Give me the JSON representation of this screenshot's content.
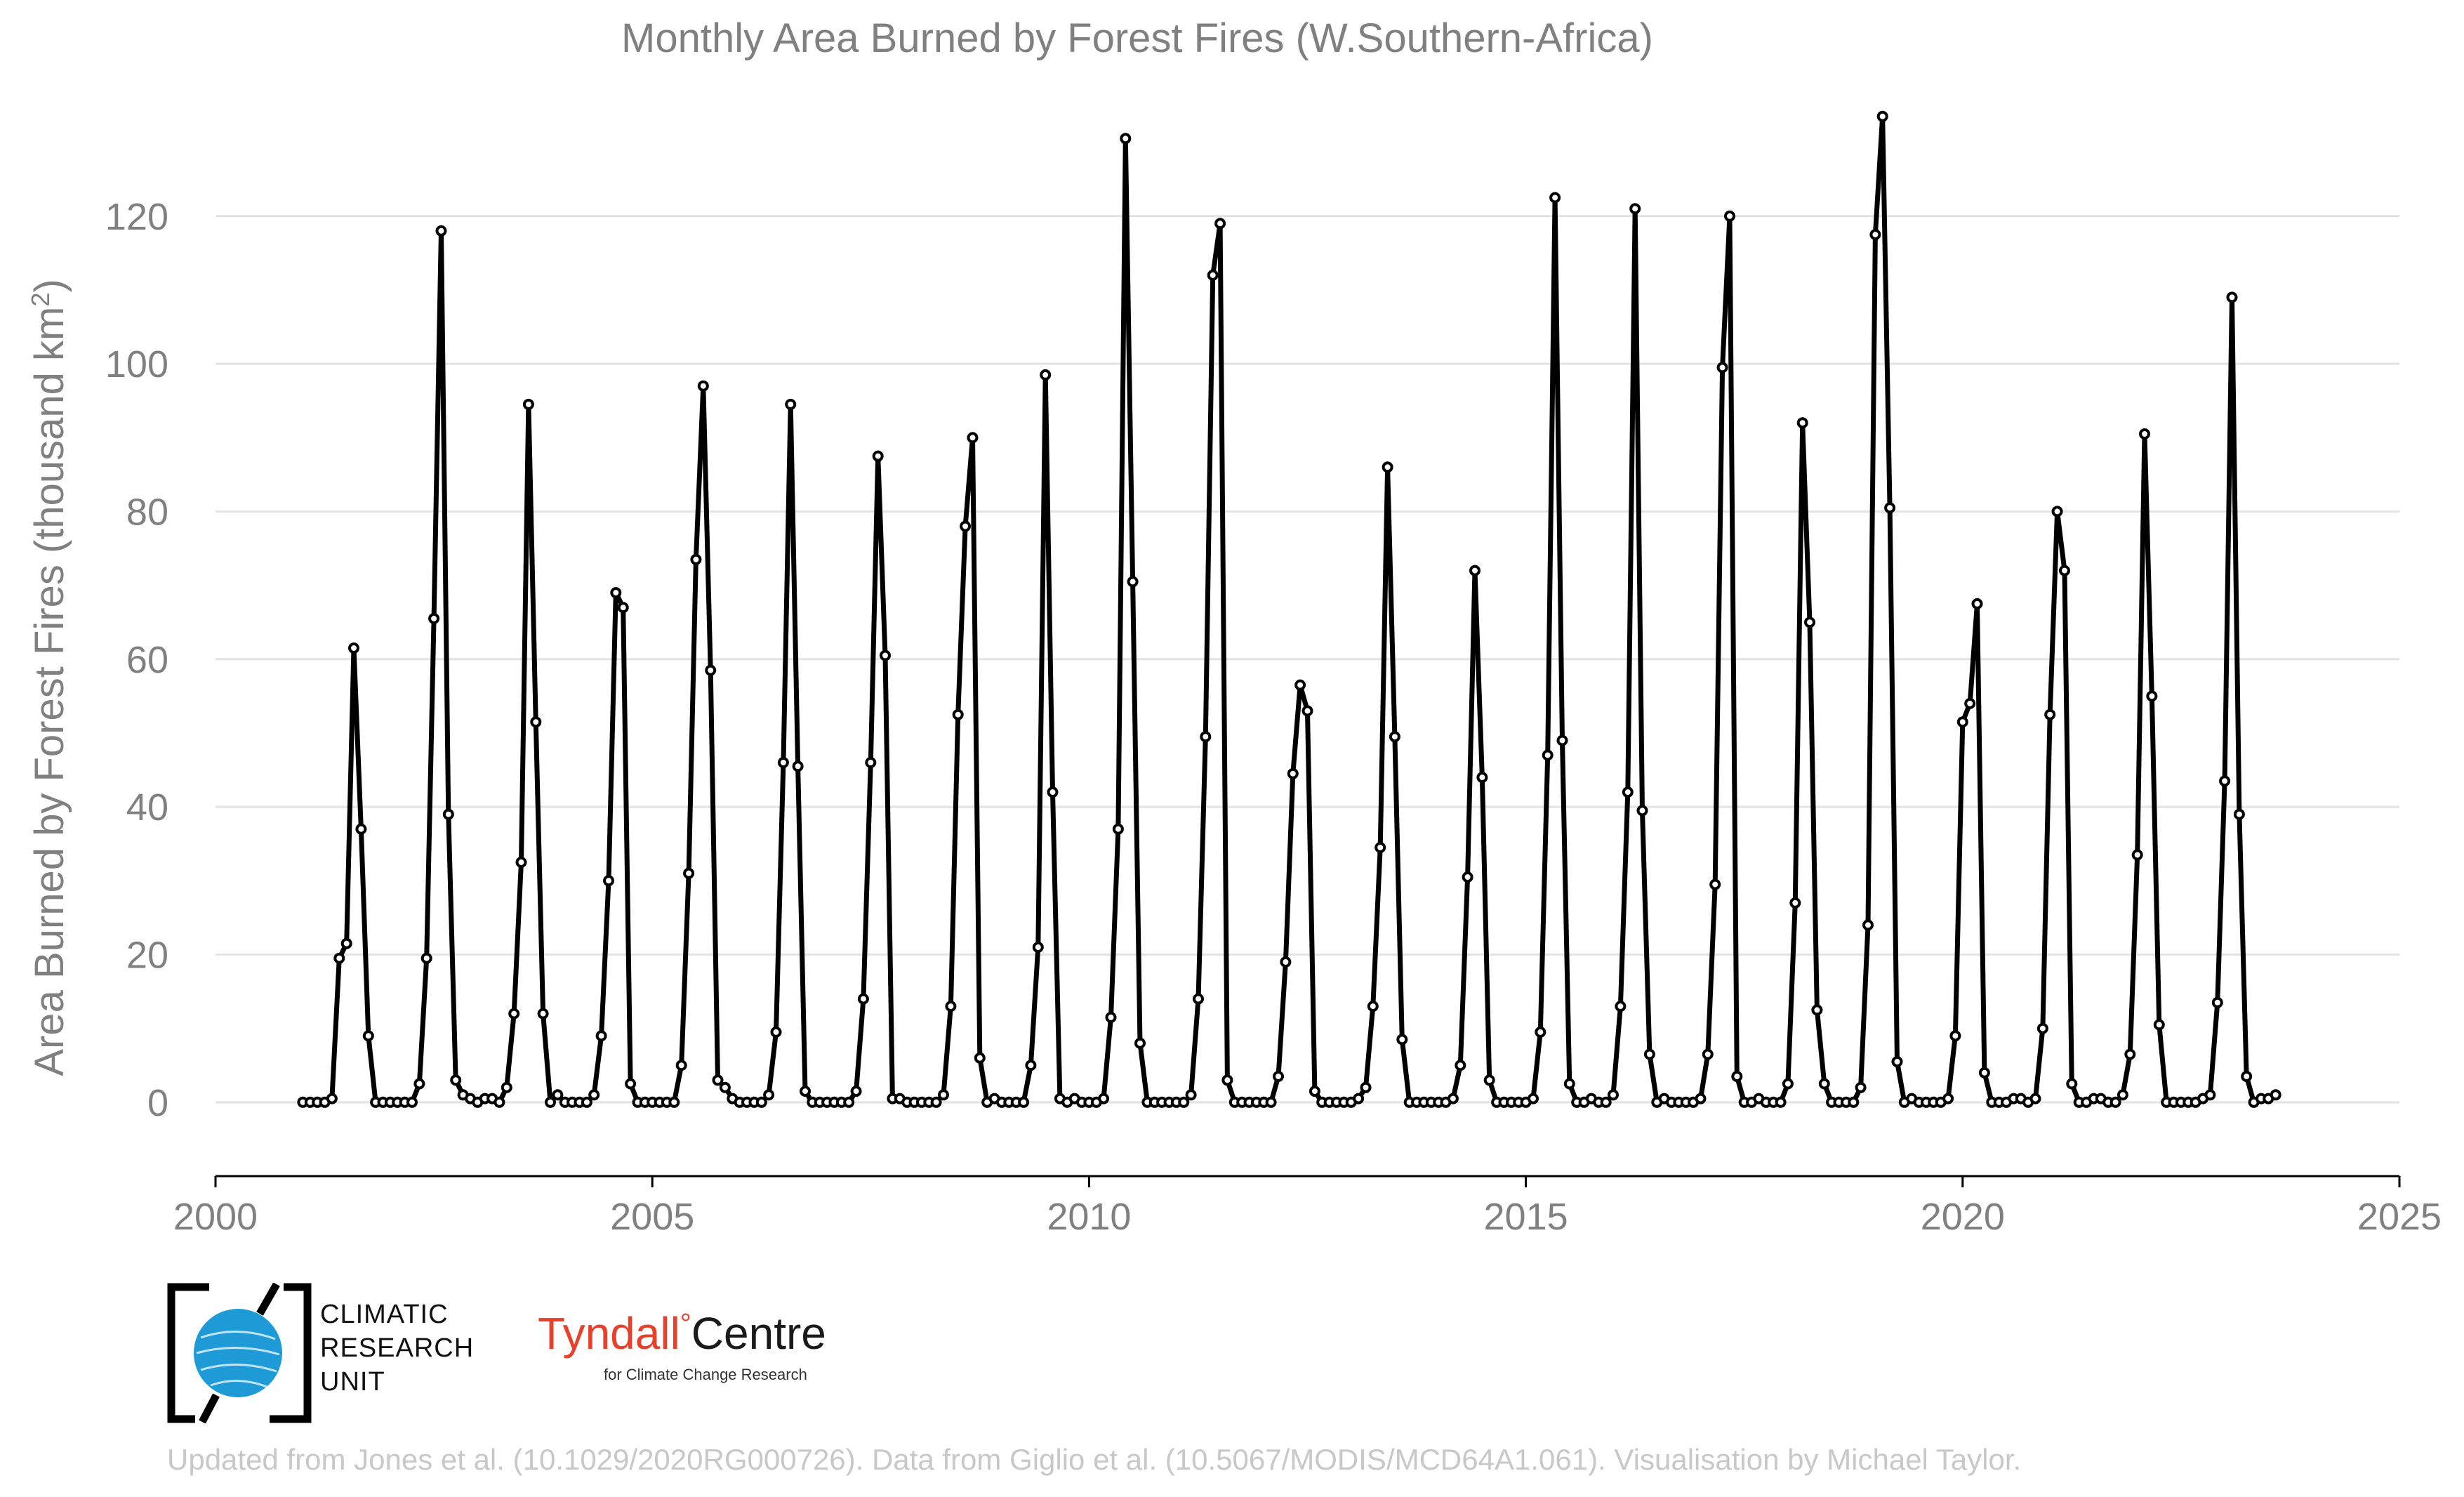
{
  "chart_data": {
    "type": "line",
    "title": "Monthly Area Burned by Forest Fires (W.Southern-Africa)",
    "ylabel": "Area Burned by Forest Fires (thousand km",
    "ylabel_sup": "2",
    "ylabel_close": ")",
    "xlabel": "",
    "xlim": [
      2000,
      2025
    ],
    "ylim": [
      -10,
      135
    ],
    "x_ticks": [
      "2000",
      "2005",
      "2010",
      "2015",
      "2020",
      "2025"
    ],
    "y_ticks": [
      "0",
      "20",
      "40",
      "60",
      "80",
      "100",
      "120"
    ],
    "grid": "horizontal",
    "legend": "none",
    "x_start": "2001-01",
    "x_step": "month",
    "values": [
      0,
      0,
      0,
      0,
      0.5,
      19.5,
      21.5,
      61.5,
      37,
      9,
      0,
      0,
      0,
      0,
      0,
      0,
      2.5,
      19.5,
      65.5,
      118,
      39,
      3,
      1,
      0.5,
      0,
      0.5,
      0.5,
      0,
      2,
      12,
      32.5,
      94.5,
      51.5,
      12,
      0,
      1,
      0,
      0,
      0,
      0,
      1,
      9,
      30,
      69,
      67,
      2.5,
      0,
      0,
      0,
      0,
      0,
      0,
      5,
      31,
      73.5,
      97,
      58.5,
      3,
      2,
      0.5,
      0,
      0,
      0,
      0,
      1,
      9.5,
      46,
      94.5,
      45.5,
      1.5,
      0,
      0,
      0,
      0,
      0,
      0,
      1.5,
      14,
      46,
      87.5,
      60.5,
      0.5,
      0.5,
      0,
      0,
      0,
      0,
      0,
      1,
      13,
      52.5,
      78,
      90,
      6,
      0,
      0.5,
      0,
      0,
      0,
      0,
      5,
      21,
      98.5,
      42,
      0.5,
      0,
      0.5,
      0,
      0,
      0,
      0.5,
      11.5,
      37,
      130.5,
      70.5,
      8,
      0,
      0,
      0,
      0,
      0,
      0,
      1,
      14,
      49.5,
      112,
      119,
      3,
      0,
      0,
      0,
      0,
      0,
      0,
      3.5,
      19,
      44.5,
      56.5,
      53,
      1.5,
      0,
      0,
      0,
      0,
      0,
      0.5,
      2,
      13,
      34.5,
      86,
      49.5,
      8.5,
      0,
      0,
      0,
      0,
      0,
      0,
      0.5,
      5,
      30.5,
      72,
      44,
      3,
      0,
      0,
      0,
      0,
      0,
      0.5,
      9.5,
      47,
      122.5,
      49,
      2.5,
      0,
      0,
      0.5,
      0,
      0,
      1,
      13,
      42,
      121,
      39.5,
      6.5,
      0,
      0.5,
      0,
      0,
      0,
      0,
      0.5,
      6.5,
      29.5,
      99.5,
      120,
      3.5,
      0,
      0,
      0.5,
      0,
      0,
      0,
      2.5,
      27,
      92,
      65,
      12.5,
      2.5,
      0,
      0,
      0,
      0,
      2,
      24,
      117.5,
      133.5,
      80.5,
      5.5,
      0,
      0.5,
      0,
      0,
      0,
      0,
      0.5,
      9,
      51.5,
      54,
      67.5,
      4,
      0,
      0,
      0,
      0.5,
      0.5,
      0,
      0.5,
      10,
      52.5,
      80,
      72,
      2.5,
      0,
      0,
      0.5,
      0.5,
      0,
      0,
      1,
      6.5,
      33.5,
      90.5,
      55,
      10.5,
      0,
      0,
      0,
      0,
      0,
      0.5,
      1,
      13.5,
      43.5,
      109,
      39,
      3.5,
      0,
      0.5,
      0.5,
      1
    ]
  },
  "logos": {
    "cru": [
      "CLIMATIC",
      "RESEARCH",
      "UNIT"
    ],
    "tyndall_name": "Tyndall",
    "tyndall_degree": "°",
    "tyndall_centre": "Centre",
    "tyndall_sub": "for Climate Change Research"
  },
  "credit": "Updated from Jones et al. (10.1029/2020RG000726). Data from Giglio et al. (10.5067/MODIS/MCD64A1.061). Visualisation by Michael Taylor."
}
